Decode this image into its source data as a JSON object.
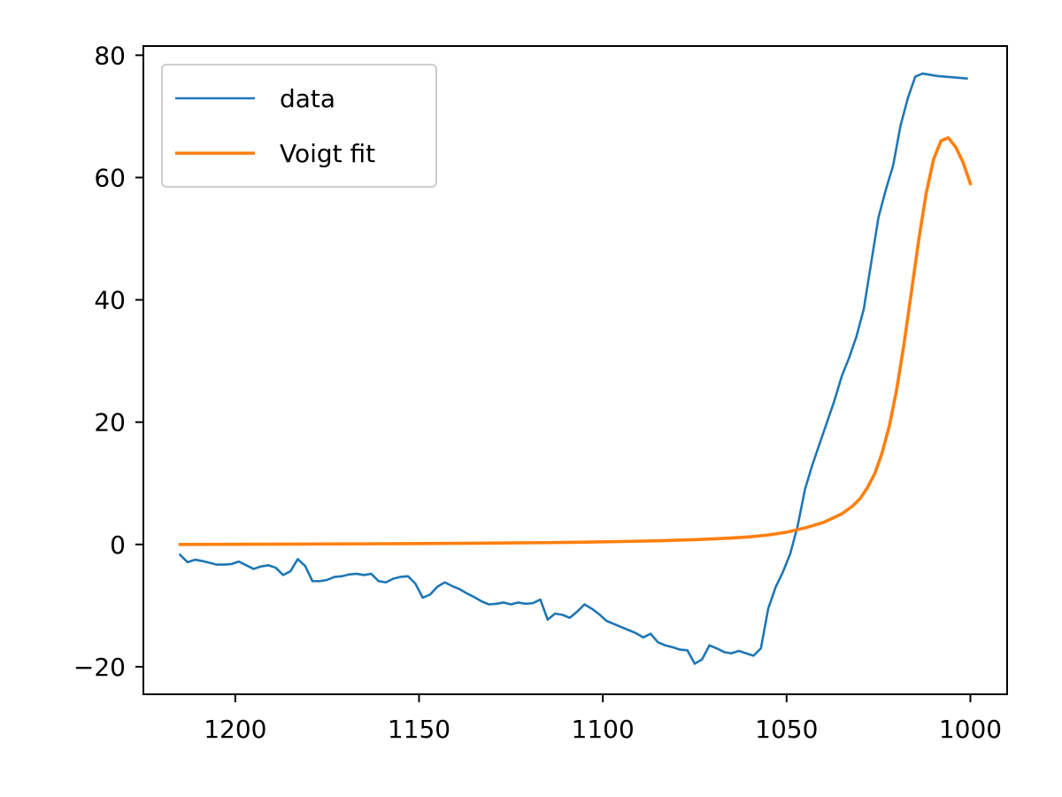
{
  "chart_data": {
    "type": "line",
    "title": "",
    "xlabel": "",
    "ylabel": "",
    "x_axis_reversed": true,
    "xlim": [
      1225,
      990
    ],
    "ylim": [
      -24.5,
      81.5
    ],
    "grid": false,
    "legend_placement": "upper-left",
    "x_ticks": [
      1200,
      1150,
      1100,
      1050,
      1000
    ],
    "x_tick_labels": [
      "1200",
      "1150",
      "1100",
      "1050",
      "1000"
    ],
    "y_ticks": [
      -20,
      0,
      20,
      40,
      60,
      80
    ],
    "y_tick_labels": [
      "−20",
      "0",
      "20",
      "40",
      "60",
      "80"
    ],
    "series": [
      {
        "name": "data",
        "color": "#1f77b4",
        "x": [
          1215,
          1213,
          1211,
          1209,
          1207,
          1205,
          1203,
          1201,
          1199,
          1197,
          1195,
          1193,
          1191,
          1189,
          1187,
          1185,
          1183,
          1181,
          1179,
          1177,
          1175,
          1173,
          1171,
          1169,
          1167,
          1165,
          1163,
          1161,
          1159,
          1157,
          1155,
          1153,
          1151,
          1149,
          1147,
          1145,
          1143,
          1141,
          1139,
          1137,
          1135,
          1133,
          1131,
          1129,
          1127,
          1125,
          1123,
          1121,
          1119,
          1117,
          1115,
          1113,
          1111,
          1109,
          1107,
          1105,
          1103,
          1101,
          1099,
          1097,
          1095,
          1093,
          1091,
          1089,
          1087,
          1085,
          1083,
          1081,
          1079,
          1077,
          1075,
          1073,
          1071,
          1069,
          1067,
          1065,
          1063,
          1061,
          1059,
          1057,
          1055,
          1053,
          1051,
          1049,
          1047,
          1045,
          1043,
          1041,
          1039,
          1037,
          1035,
          1033,
          1031,
          1029,
          1027,
          1025,
          1023,
          1021,
          1019,
          1017,
          1015,
          1013,
          1011,
          1009,
          1007,
          1005,
          1003,
          1001
        ],
        "y": [
          -1.7,
          -2.9,
          -2.5,
          -2.7,
          -3.0,
          -3.3,
          -3.3,
          -3.2,
          -2.8,
          -3.4,
          -4.0,
          -3.6,
          -3.4,
          -3.8,
          -5.0,
          -4.4,
          -2.4,
          -3.5,
          -6.0,
          -6.0,
          -5.8,
          -5.3,
          -5.2,
          -4.9,
          -4.8,
          -5.0,
          -4.8,
          -6.0,
          -6.2,
          -5.6,
          -5.3,
          -5.2,
          -6.4,
          -8.7,
          -8.2,
          -6.9,
          -6.2,
          -6.8,
          -7.3,
          -8.0,
          -8.6,
          -9.3,
          -9.8,
          -9.7,
          -9.5,
          -9.8,
          -9.5,
          -9.7,
          -9.6,
          -9.0,
          -12.3,
          -11.3,
          -11.5,
          -12.0,
          -11.0,
          -9.8,
          -10.5,
          -11.4,
          -12.5,
          -13.0,
          -13.5,
          -14.0,
          -14.5,
          -15.2,
          -14.6,
          -16.0,
          -16.5,
          -16.8,
          -17.2,
          -17.3,
          -19.5,
          -18.8,
          -16.5,
          -17.0,
          -17.6,
          -17.8,
          -17.4,
          -17.8,
          -18.2,
          -17.0,
          -10.5,
          -7.0,
          -4.5,
          -1.5,
          3.0,
          9.0,
          13.0,
          16.5,
          20.0,
          23.5,
          27.5,
          30.5,
          34.0,
          38.5,
          46.0,
          53.5,
          58.0,
          62.0,
          68.5,
          73.0,
          76.5,
          77.0,
          76.8,
          76.6,
          76.5,
          76.4,
          76.3,
          76.2
        ]
      },
      {
        "name": "Voigt fit",
        "color": "#ff7f0e",
        "x": [
          1215,
          1205,
          1195,
          1185,
          1175,
          1165,
          1155,
          1145,
          1135,
          1125,
          1115,
          1105,
          1095,
          1085,
          1075,
          1065,
          1060,
          1055,
          1050,
          1045,
          1040,
          1035,
          1032,
          1030,
          1028,
          1026,
          1024,
          1022,
          1020,
          1018,
          1016,
          1014,
          1012,
          1010,
          1008,
          1006,
          1004,
          1002,
          1000
        ],
        "y": [
          0.0,
          0.02,
          0.04,
          0.06,
          0.08,
          0.1,
          0.13,
          0.16,
          0.2,
          0.25,
          0.3,
          0.38,
          0.48,
          0.6,
          0.78,
          1.05,
          1.25,
          1.55,
          2.0,
          2.7,
          3.6,
          5.0,
          6.3,
          7.5,
          9.3,
          11.6,
          15.0,
          19.5,
          25.5,
          33.0,
          41.5,
          50.0,
          57.5,
          63.0,
          66.0,
          66.5,
          65.0,
          62.5,
          59.0
        ]
      }
    ]
  }
}
